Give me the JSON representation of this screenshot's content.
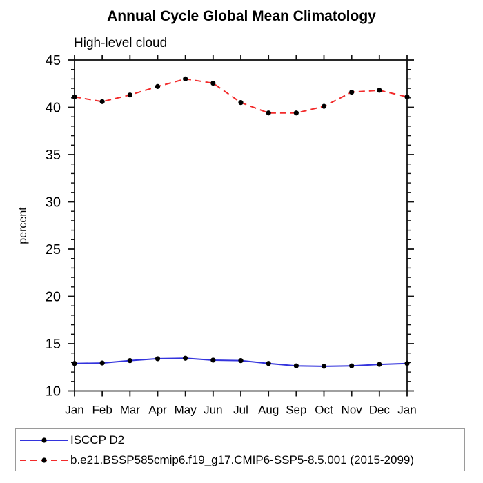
{
  "title": "Annual Cycle Global Mean Climatology",
  "subtitle": "High-level cloud",
  "legend": {
    "items": [
      {
        "label": "ISCCP D2",
        "color": "#3333dd",
        "dash": "solid",
        "marker": "black-dot"
      },
      {
        "label": "b.e21.BSSP585cmip6.f19_g17.CMIP6-SSP5-8.5.001 (2015-2099)",
        "color": "#f22b2b",
        "dash": "dashed",
        "marker": "black-dot"
      }
    ]
  },
  "chart_data": {
    "type": "line",
    "title": "Annual Cycle Global Mean Climatology",
    "subtitle": "High-level cloud",
    "xlabel": "",
    "ylabel": "percent",
    "categories": [
      "Jan",
      "Feb",
      "Mar",
      "Apr",
      "May",
      "Jun",
      "Jul",
      "Aug",
      "Sep",
      "Oct",
      "Nov",
      "Dec",
      "Jan"
    ],
    "series": [
      {
        "name": "ISCCP D2",
        "color": "#3333dd",
        "dash": "solid",
        "marker": "black-dot",
        "values": [
          12.9,
          12.95,
          13.2,
          13.4,
          13.45,
          13.25,
          13.2,
          12.9,
          12.65,
          12.6,
          12.65,
          12.8,
          12.9
        ]
      },
      {
        "name": "b.e21.BSSP585cmip6.f19_g17.CMIP6-SSP5-8.5.001 (2015-2099)",
        "color": "#f22b2b",
        "dash": "dashed",
        "marker": "black-dot",
        "values": [
          41.1,
          40.6,
          41.3,
          42.2,
          43.0,
          42.55,
          40.5,
          39.4,
          39.4,
          40.1,
          41.6,
          41.8,
          41.1
        ]
      }
    ],
    "ylim": [
      10,
      45
    ],
    "yticks": [
      10,
      15,
      20,
      25,
      30,
      35,
      40,
      45
    ],
    "y_minor_step": 1,
    "grid": false,
    "legend_position": "bottom",
    "marker_color": "#000000"
  }
}
